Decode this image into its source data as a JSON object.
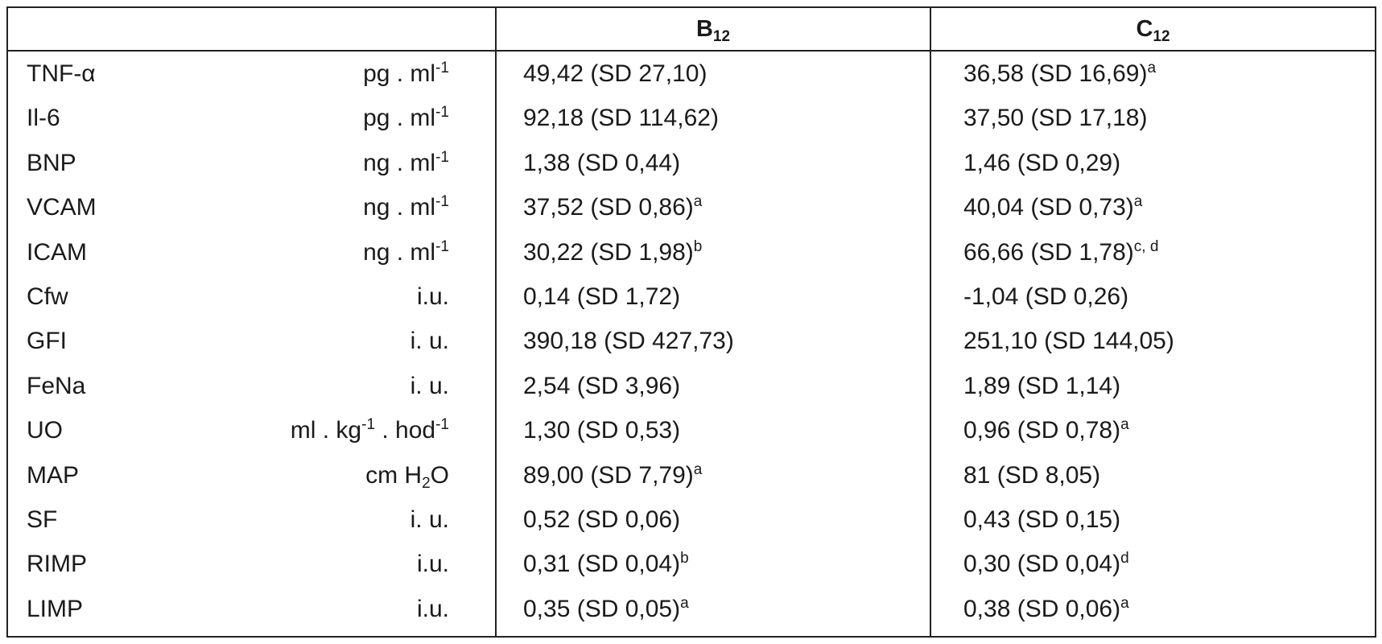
{
  "header": {
    "col_b_main": "B",
    "col_b_sub": "12",
    "col_c_main": "C",
    "col_c_sub": "12"
  },
  "rows": [
    {
      "name": "TNF-α",
      "unit": "pg . ml",
      "unit_sup": "-1",
      "b_value": "49,42 (SD 27,10)",
      "b_sup": "",
      "c_value": "36,58 (SD 16,69)",
      "c_sup": "a"
    },
    {
      "name": "Il-6",
      "unit": "pg . ml",
      "unit_sup": "-1",
      "b_value": "92,18 (SD 114,62)",
      "b_sup": "",
      "c_value": "37,50 (SD 17,18)",
      "c_sup": ""
    },
    {
      "name": "BNP",
      "unit": "ng . ml",
      "unit_sup": "-1",
      "b_value": "1,38 (SD 0,44)",
      "b_sup": "",
      "c_value": "1,46 (SD 0,29)",
      "c_sup": ""
    },
    {
      "name": "VCAM",
      "unit": "ng . ml",
      "unit_sup": "-1",
      "b_value": "37,52 (SD 0,86)",
      "b_sup": "a",
      "c_value": "40,04 (SD 0,73)",
      "c_sup": "a"
    },
    {
      "name": "ICAM",
      "unit": "ng . ml",
      "unit_sup": "-1",
      "b_value": "30,22 (SD 1,98)",
      "b_sup": "b",
      "c_value": "66,66 (SD 1,78)",
      "c_sup": "c, d"
    },
    {
      "name": "Cfw",
      "unit": "i.u.",
      "unit_sup": "",
      "b_value": "0,14 (SD 1,72)",
      "b_sup": "",
      "c_value": "-1,04 (SD 0,26)",
      "c_sup": ""
    },
    {
      "name": "GFI",
      "unit": "i. u.",
      "unit_sup": "",
      "b_value": "390,18 (SD 427,73)",
      "b_sup": "",
      "c_value": "251,10 (SD 144,05)",
      "c_sup": ""
    },
    {
      "name": "FeNa",
      "unit": "i. u.",
      "unit_sup": "",
      "b_value": "2,54 (SD 3,96)",
      "b_sup": "",
      "c_value": "1,89 (SD 1,14)",
      "c_sup": ""
    },
    {
      "name": "UO",
      "unit": "",
      "unit_sup": "",
      "b_value": "1,30 (SD 0,53)",
      "b_sup": "",
      "c_value": "0,96 (SD 0,78)",
      "c_sup": "a"
    },
    {
      "name": "MAP",
      "unit": "",
      "unit_sup": "",
      "b_value": "89,00 (SD 7,79)",
      "b_sup": "a",
      "c_value": "81 (SD 8,05)",
      "c_sup": ""
    },
    {
      "name": "SF",
      "unit": "i. u.",
      "unit_sup": "",
      "b_value": "0,52 (SD 0,06)",
      "b_sup": "",
      "c_value": "0,43 (SD 0,15)",
      "c_sup": ""
    },
    {
      "name": "RIMP",
      "unit": "i.u.",
      "unit_sup": "",
      "b_value": "0,31 (SD 0,04)",
      "b_sup": "b",
      "c_value": "0,30 (SD 0,04)",
      "c_sup": "d"
    },
    {
      "name": "LIMP",
      "unit": "i.u.",
      "unit_sup": "",
      "b_value": "0,35 (SD 0,05)",
      "b_sup": "a",
      "c_value": "0,38 (SD 0,06)",
      "c_sup": "a"
    }
  ],
  "uo_unit": {
    "p1": "ml . kg",
    "s1": "-1",
    "p2": " . hod",
    "s2": "-1"
  },
  "map_unit": {
    "p1": "cm H",
    "sub": "2",
    "p2": "O"
  }
}
